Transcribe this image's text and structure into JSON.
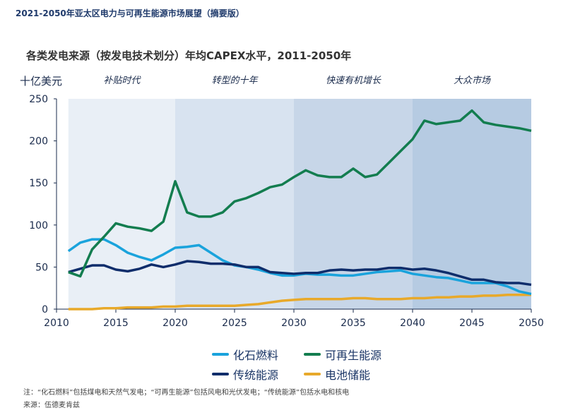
{
  "header": "2021-2050年亚太区电力与可再生能源市场展望（摘要版）",
  "note": "注：“化石燃料”包括煤电和天然气发电；“可再生能源”包括风电和光伏发电；“传统能源”包括水电和核电",
  "source": "来源：伍德麦肯兹",
  "chart_data": {
    "type": "line",
    "title": "各类发电来源（按发电技术划分）年均CAPEX水平，2011-2050年",
    "ylabel": "十亿美元",
    "xlabel": "",
    "xlim": [
      2010,
      2050
    ],
    "ylim": [
      0,
      250
    ],
    "xticks": [
      2010,
      2015,
      2020,
      2025,
      2030,
      2035,
      2040,
      2045,
      2050
    ],
    "yticks": [
      0,
      50,
      100,
      150,
      200,
      250
    ],
    "periods": [
      {
        "label": "补贴时代",
        "from": 2011,
        "to": 2020,
        "color": "#e9eff6"
      },
      {
        "label": "转型的十年",
        "from": 2020,
        "to": 2030,
        "color": "#d8e3f0"
      },
      {
        "label": "快速有机增长",
        "from": 2030,
        "to": 2040,
        "color": "#c7d6e8"
      },
      {
        "label": "大众市场",
        "from": 2040,
        "to": 2050,
        "color": "#b6cbe2"
      }
    ],
    "x": [
      2011,
      2012,
      2013,
      2014,
      2015,
      2016,
      2017,
      2018,
      2019,
      2020,
      2021,
      2022,
      2023,
      2024,
      2025,
      2026,
      2027,
      2028,
      2029,
      2030,
      2031,
      2032,
      2033,
      2034,
      2035,
      2036,
      2037,
      2038,
      2039,
      2040,
      2041,
      2042,
      2043,
      2044,
      2045,
      2046,
      2047,
      2048,
      2049,
      2050
    ],
    "series": [
      {
        "name": "化石燃料",
        "color": "#1aa3dc",
        "values": [
          69,
          79,
          83,
          83,
          76,
          67,
          62,
          58,
          65,
          73,
          74,
          76,
          67,
          58,
          52,
          50,
          47,
          43,
          40,
          40,
          42,
          41,
          41,
          40,
          40,
          42,
          44,
          45,
          46,
          42,
          40,
          38,
          37,
          34,
          31,
          31,
          31,
          27,
          21,
          18
        ]
      },
      {
        "name": "可再生能源",
        "color": "#137d4f",
        "values": [
          44,
          39,
          71,
          86,
          102,
          98,
          96,
          93,
          104,
          152,
          115,
          110,
          110,
          115,
          128,
          132,
          138,
          145,
          148,
          157,
          165,
          159,
          157,
          157,
          167,
          157,
          160,
          174,
          188,
          202,
          224,
          220,
          222,
          224,
          236,
          222,
          219,
          217,
          215,
          212
        ]
      },
      {
        "name": "传统能源",
        "color": "#0f2d6b",
        "values": [
          44,
          48,
          52,
          52,
          47,
          45,
          48,
          53,
          50,
          53,
          57,
          56,
          54,
          54,
          53,
          50,
          50,
          44,
          43,
          42,
          43,
          43,
          46,
          47,
          46,
          47,
          47,
          49,
          49,
          47,
          48,
          46,
          43,
          39,
          35,
          35,
          32,
          31,
          31,
          29
        ]
      },
      {
        "name": "电池储能",
        "color": "#e8a92a",
        "values": [
          0,
          0,
          0,
          1,
          1,
          2,
          2,
          2,
          3,
          3,
          4,
          4,
          4,
          4,
          4,
          5,
          6,
          8,
          10,
          11,
          12,
          12,
          12,
          12,
          13,
          13,
          12,
          12,
          12,
          13,
          13,
          14,
          14,
          15,
          15,
          16,
          16,
          17,
          17,
          17
        ]
      }
    ],
    "legend": "bottom"
  }
}
